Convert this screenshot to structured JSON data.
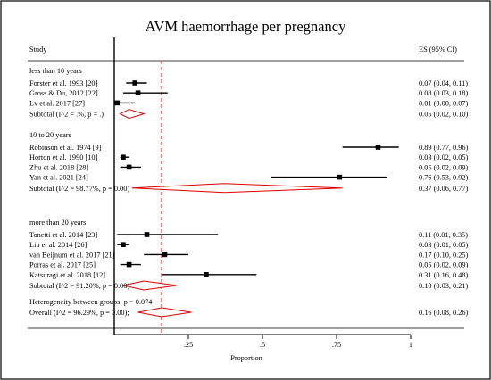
{
  "chart_data": {
    "type": "forest",
    "title": "AVM haemorrhage per pregnancy",
    "column_headers": {
      "study": "Study",
      "effect": "ES (95% CI)"
    },
    "xlabel": "Proportion",
    "xlim": [
      0,
      1
    ],
    "xticks": [
      0.25,
      0.5,
      0.75,
      1
    ],
    "xtick_labels": [
      ".25",
      ".5",
      ".75",
      "1"
    ],
    "overall_line": 0.16,
    "groups": [
      {
        "name": "less than 10 years",
        "studies": [
          {
            "label": "Forster et al. 1993 [20]",
            "es": 0.07,
            "lo": 0.04,
            "hi": 0.11,
            "text": "0.07 (0.04, 0.11)"
          },
          {
            "label": "Gross & Du, 2012 [22]",
            "es": 0.08,
            "lo": 0.03,
            "hi": 0.18,
            "text": "0.08 (0.03, 0.18)"
          },
          {
            "label": "Lv et al. 2017 [27]",
            "es": 0.01,
            "lo": 0.0,
            "hi": 0.07,
            "text": "0.01 (0.00, 0.07)"
          }
        ],
        "subtotal": {
          "label": "Subtotal  (I^2 = .%, p = .)",
          "es": 0.05,
          "lo": 0.02,
          "hi": 0.1,
          "text": "0.05 (0.02, 0.10)"
        }
      },
      {
        "name": "10 to 20 years",
        "studies": [
          {
            "label": "Robinson et al. 1974 [9]",
            "es": 0.89,
            "lo": 0.77,
            "hi": 0.96,
            "text": "0.89 (0.77, 0.96)"
          },
          {
            "label": "Horton et al. 1990 [10]",
            "es": 0.03,
            "lo": 0.02,
            "hi": 0.05,
            "text": "0.03 (0.02, 0.05)"
          },
          {
            "label": "Zhu et al. 2018 [28]",
            "es": 0.05,
            "lo": 0.02,
            "hi": 0.09,
            "text": "0.05 (0.02, 0.09)"
          },
          {
            "label": "Yan et al. 2021 [24]",
            "es": 0.76,
            "lo": 0.53,
            "hi": 0.92,
            "text": "0.76 (0.53, 0.92)"
          }
        ],
        "subtotal": {
          "label": "Subtotal  (I^2 = 98.77%, p = 0.00)",
          "es": 0.37,
          "lo": 0.06,
          "hi": 0.77,
          "text": "0.37 (0.06, 0.77)"
        }
      },
      {
        "name": "more than 20 years",
        "studies": [
          {
            "label": "Tonetti et al. 2014 [23]",
            "es": 0.11,
            "lo": 0.01,
            "hi": 0.35,
            "text": "0.11 (0.01, 0.35)"
          },
          {
            "label": "Liu et al. 2014 [26]",
            "es": 0.03,
            "lo": 0.01,
            "hi": 0.05,
            "text": "0.03 (0.01, 0.05)"
          },
          {
            "label": "van Beijnum et al. 2017 [21]",
            "es": 0.17,
            "lo": 0.1,
            "hi": 0.25,
            "text": "0.17 (0.10, 0.25)"
          },
          {
            "label": "Porras et al. 2017 [25]",
            "es": 0.05,
            "lo": 0.02,
            "hi": 0.09,
            "text": "0.05 (0.02, 0.09)"
          },
          {
            "label": "Katsuragi et al. 2018 [12]",
            "es": 0.31,
            "lo": 0.16,
            "hi": 0.48,
            "text": "0.31 (0.16, 0.48)"
          }
        ],
        "subtotal": {
          "label": "Subtotal  (I^2 = 91.20%, p = 0.00)",
          "es": 0.1,
          "lo": 0.03,
          "hi": 0.21,
          "text": "0.10 (0.03, 0.21)"
        }
      }
    ],
    "heterogeneity": "Heterogeneity between groups: p = 0.074",
    "overall": {
      "label": "Overall  (I^2 = 96.29%, p = 0.00);",
      "es": 0.16,
      "lo": 0.08,
      "hi": 0.26,
      "text": "0.16 (0.08, 0.26)"
    },
    "colors": {
      "reference_line": "#d00000",
      "diamond": "#e00000",
      "marks": "#000000",
      "frame": "#000000"
    }
  }
}
